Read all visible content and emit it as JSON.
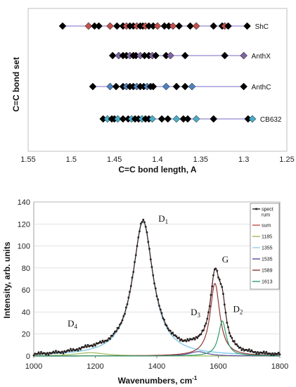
{
  "chart_data": [
    {
      "type": "scatter",
      "xlabel": "C=C bond length, A",
      "ylabel": "C=C bond set",
      "xlim": [
        1.25,
        1.55
      ],
      "x_reversed": true,
      "xticks": [
        "1.55",
        "1.5",
        "1.45",
        "1.4",
        "1.35",
        "1.3",
        "1.25"
      ],
      "xtick_values": [
        1.55,
        1.5,
        1.45,
        1.4,
        1.35,
        1.3,
        1.25
      ],
      "grid": false,
      "series": [
        {
          "name": "ShC",
          "color": "#c0504d",
          "values": [
            1.51,
            1.48,
            1.473,
            1.468,
            1.455,
            1.447,
            1.44,
            1.436,
            1.432,
            1.428,
            1.424,
            1.42,
            1.417,
            1.414,
            1.41,
            1.405,
            1.4,
            1.392,
            1.387,
            1.382,
            1.375,
            1.362,
            1.355,
            1.335,
            1.325,
            1.322,
            1.318,
            1.296
          ]
        },
        {
          "name": "AnthX",
          "color": "#8064a2",
          "values": [
            1.452,
            1.445,
            1.44,
            1.436,
            1.432,
            1.428,
            1.425,
            1.42,
            1.415,
            1.41,
            1.406,
            1.402,
            1.39,
            1.385,
            1.368,
            1.322,
            1.3
          ]
        },
        {
          "name": "AnthC",
          "color": "#4f81bd",
          "values": [
            1.475,
            1.455,
            1.448,
            1.44,
            1.436,
            1.432,
            1.428,
            1.424,
            1.42,
            1.416,
            1.412,
            1.408,
            1.405,
            1.39,
            1.378,
            1.368,
            1.36,
            1.3
          ]
        },
        {
          "name": "CB632",
          "color": "#4bacc6",
          "values": [
            1.463,
            1.458,
            1.453,
            1.45,
            1.446,
            1.44,
            1.434,
            1.43,
            1.426,
            1.422,
            1.418,
            1.414,
            1.41,
            1.406,
            1.395,
            1.388,
            1.378,
            1.37,
            1.365,
            1.355,
            1.335,
            1.295,
            1.29
          ]
        }
      ]
    },
    {
      "type": "line",
      "xlabel": "Wavenumbers, cm",
      "xlabel_sup": "-1",
      "ylabel": "Intensity, arb. units",
      "xlim": [
        1000,
        1800
      ],
      "ylim": [
        0,
        140
      ],
      "xticks": [
        1000,
        1200,
        1400,
        1600,
        1800
      ],
      "yticks": [
        0,
        20,
        40,
        60,
        80,
        100,
        120,
        140
      ],
      "legend": {
        "position": "top-right",
        "entries": [
          {
            "label": "spect\nrum",
            "color": "#222222"
          },
          {
            "label": "sum",
            "color": "#c0504d"
          },
          {
            "label": "1185",
            "color": "#9bbb59"
          },
          {
            "label": "1355",
            "color": "#8fd0ea"
          },
          {
            "label": "1535",
            "color": "#5b4a9e"
          },
          {
            "label": "1589",
            "color": "#943634"
          },
          {
            "label": "1613",
            "color": "#2e9e6b"
          }
        ]
      },
      "peaks": [
        {
          "center": 1185,
          "amplitude": 3,
          "width": 120,
          "color": "#9bbb59"
        },
        {
          "center": 1355,
          "amplitude": 122,
          "width": 80,
          "color": "#8fd0ea"
        },
        {
          "center": 1535,
          "amplitude": 4,
          "width": 70,
          "color": "#5b4a9e"
        },
        {
          "center": 1589,
          "amplitude": 66,
          "width": 38,
          "color": "#943634"
        },
        {
          "center": 1613,
          "amplitude": 32,
          "width": 30,
          "color": "#2e9e6b"
        }
      ],
      "annotations": [
        {
          "main": "D",
          "sub": "1",
          "x": 1405,
          "y": 122
        },
        {
          "main": "G",
          "sub": "",
          "x": 1612,
          "y": 85
        },
        {
          "main": "D",
          "sub": "3",
          "x": 1510,
          "y": 37
        },
        {
          "main": "D",
          "sub": "2",
          "x": 1648,
          "y": 40
        },
        {
          "main": "D",
          "sub": "4",
          "x": 1110,
          "y": 27
        }
      ]
    }
  ]
}
